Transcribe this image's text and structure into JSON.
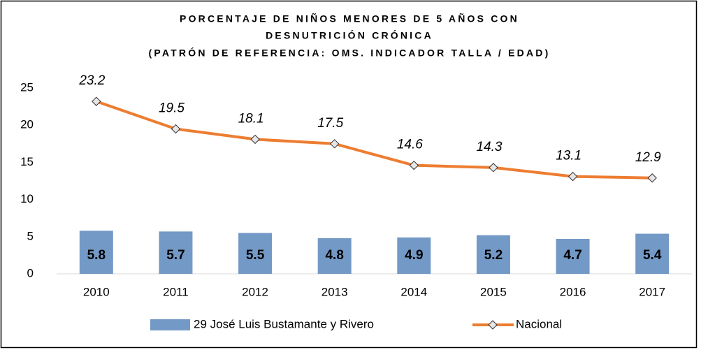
{
  "chart_data": {
    "type": "combo",
    "title": [
      "PORCENTAJE DE NIÑOS MENORES DE 5 AÑOS CON",
      "DESNUTRICIÓN CRÓNICA",
      "(PATRÓN DE REFERENCIA: OMS. INDICADOR TALLA / EDAD)"
    ],
    "categories": [
      "2010",
      "2011",
      "2012",
      "2013",
      "2014",
      "2015",
      "2016",
      "2017"
    ],
    "series": [
      {
        "name": "29 José Luis Bustamante y Rivero",
        "type": "bar",
        "color": "#7399c6",
        "values": [
          5.8,
          5.7,
          5.5,
          4.8,
          4.9,
          5.2,
          4.7,
          5.4
        ]
      },
      {
        "name": "Nacional",
        "type": "line",
        "color": "#ed7d31",
        "values": [
          23.2,
          19.5,
          18.1,
          17.5,
          14.6,
          14.3,
          13.1,
          12.9
        ]
      }
    ],
    "ylim": [
      0,
      25
    ],
    "yticks": [
      0,
      5,
      10,
      15,
      20,
      25
    ],
    "grid": false,
    "legend": "bottom"
  }
}
